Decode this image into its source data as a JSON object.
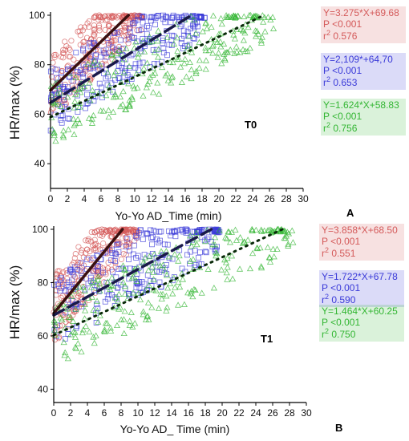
{
  "chart_data": [
    {
      "type": "scatter",
      "panel": "A",
      "title": "T0",
      "xlabel": "Yo-Yo AD_Time (min)",
      "ylabel": "HR/max (%)",
      "xlim": [
        0,
        30
      ],
      "ylim": [
        30,
        100
      ],
      "xticks": [
        0,
        2,
        4,
        6,
        8,
        10,
        12,
        14,
        16,
        18,
        20,
        22,
        24,
        26,
        28,
        30
      ],
      "yticks": [
        40,
        60,
        80,
        100
      ],
      "series": [
        {
          "color": "#d45a5a",
          "marker": "circle",
          "regression": {
            "equation": "Y=3.275*X+69.68",
            "p": "P <0.001",
            "r2_label": "r",
            "r2_value": "0.576",
            "slope": 3.275,
            "intercept": 69.68,
            "line_style": "solid",
            "line_color": "#3a1010"
          },
          "x_range": [
            0,
            9.5
          ]
        },
        {
          "color": "#3a3ad8",
          "marker": "square",
          "regression": {
            "equation": "Y=2,109*+64,70",
            "p": "P <0.001",
            "r2_label": "r",
            "r2_value": "0.653",
            "slope": 2.109,
            "intercept": 64.7,
            "line_style": "dashed",
            "line_color": "#1a1a4a"
          },
          "x_range": [
            0,
            17
          ]
        },
        {
          "color": "#33b633",
          "marker": "triangle",
          "regression": {
            "equation": "Y=1.624*X+58.83",
            "p": "P <0.001",
            "r2_label": "r",
            "r2_value": "0.756",
            "slope": 1.624,
            "intercept": 58.83,
            "line_style": "dotted",
            "line_color": "#0a2a0a"
          },
          "x_range": [
            0,
            25
          ]
        }
      ]
    },
    {
      "type": "scatter",
      "panel": "B",
      "title": "T1",
      "xlabel": "Yo-Yo AD_ Time (min)",
      "ylabel": "HR/max (%)",
      "xlim": [
        0,
        30
      ],
      "ylim": [
        35,
        100
      ],
      "xticks": [
        0,
        2,
        4,
        6,
        8,
        10,
        12,
        14,
        16,
        18,
        20,
        22,
        24,
        26,
        28,
        30
      ],
      "yticks": [
        40,
        60,
        80,
        100
      ],
      "series": [
        {
          "color": "#d45a5a",
          "marker": "circle",
          "regression": {
            "equation": "Y=3.858*X+68.50",
            "p": "P <0.001",
            "r2_label": "r",
            "r2_value": "0.551",
            "slope": 3.858,
            "intercept": 68.5,
            "line_style": "solid",
            "line_color": "#3a1010"
          },
          "x_range": [
            0,
            8.5
          ]
        },
        {
          "color": "#3a3ad8",
          "marker": "square",
          "regression": {
            "equation": "Y=1.722*X+67.78",
            "p": "P <0.001",
            "r2_label": "r",
            "r2_value": "0.590",
            "slope": 1.722,
            "intercept": 67.78,
            "line_style": "dashed",
            "line_color": "#1a1a4a"
          },
          "x_range": [
            0,
            18.5
          ]
        },
        {
          "color": "#33b633",
          "marker": "triangle",
          "regression": {
            "equation": "Y=1.464*X+60.25",
            "p": "P <0.001",
            "r2_label": "r",
            "r2_value": "0.750",
            "slope": 1.464,
            "intercept": 60.25,
            "line_style": "dotted",
            "line_color": "#0a2a0a"
          },
          "x_range": [
            0,
            27
          ]
        }
      ]
    }
  ]
}
